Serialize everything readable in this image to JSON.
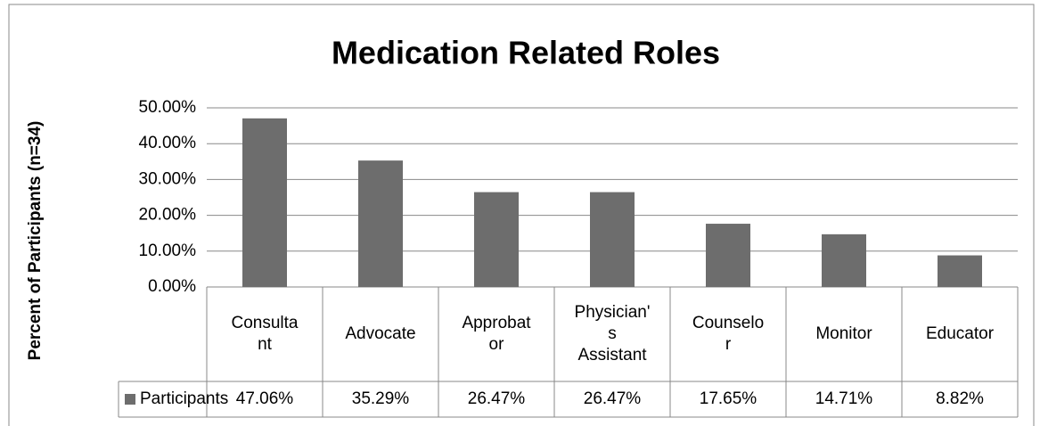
{
  "chart_data": {
    "type": "bar",
    "title": "Medication Related Roles",
    "y_label": "Percent of Participants (n=34)",
    "categories": [
      "Consulta\nnt",
      "Advocate",
      "Approbat\nor",
      "Physician'\ns\nAssistant",
      "Counselo\nr",
      "Monitor",
      "Educator"
    ],
    "series": [
      {
        "name": "Participants",
        "color": "#6d6d6d",
        "values": [
          47.06,
          35.29,
          26.47,
          26.47,
          17.65,
          14.71,
          8.82
        ],
        "value_labels": [
          "47.06%",
          "35.29%",
          "26.47%",
          "26.47%",
          "17.65%",
          "14.71%",
          "8.82%"
        ]
      }
    ],
    "ylim": [
      0,
      50
    ],
    "yticks": [
      {
        "value": 0,
        "label": "0.00%"
      },
      {
        "value": 10,
        "label": "10.00%"
      },
      {
        "value": 20,
        "label": "20.00%"
      },
      {
        "value": 30,
        "label": "30.00%"
      },
      {
        "value": 40,
        "label": "40.00%"
      },
      {
        "value": 50,
        "label": "50.00%"
      }
    ],
    "grid": true
  }
}
